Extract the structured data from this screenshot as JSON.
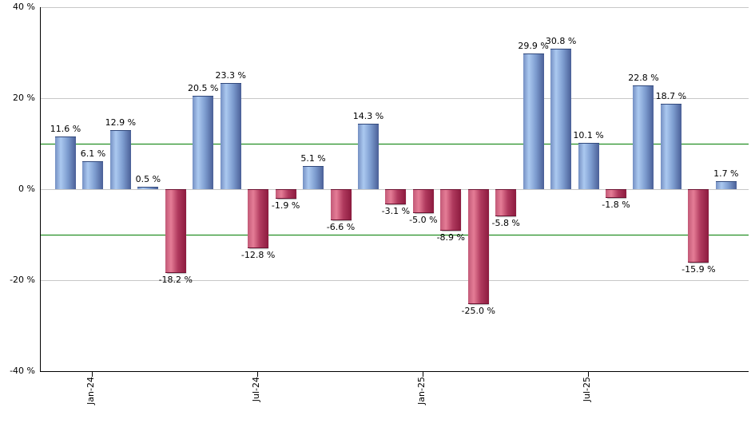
{
  "chart_data": {
    "type": "bar",
    "title": "",
    "xlabel": "",
    "ylabel": "",
    "ylim": [
      -40,
      40
    ],
    "grid": true,
    "legend": false,
    "bars": [
      {
        "value": 11.6,
        "label": "11.6 %"
      },
      {
        "value": 6.1,
        "label": "6.1 %"
      },
      {
        "value": 12.9,
        "label": "12.9 %"
      },
      {
        "value": 0.5,
        "label": "0.5 %"
      },
      {
        "value": -18.2,
        "label": "-18.2 %"
      },
      {
        "value": 20.5,
        "label": "20.5 %"
      },
      {
        "value": 23.3,
        "label": "23.3 %"
      },
      {
        "value": -12.8,
        "label": "-12.8 %"
      },
      {
        "value": -1.9,
        "label": "-1.9 %"
      },
      {
        "value": 5.1,
        "label": "5.1 %"
      },
      {
        "value": -6.6,
        "label": "-6.6 %"
      },
      {
        "value": 14.3,
        "label": "14.3 %"
      },
      {
        "value": -3.1,
        "label": "-3.1 %"
      },
      {
        "value": -5.0,
        "label": "-5.0 %"
      },
      {
        "value": -8.9,
        "label": "-8.9 %"
      },
      {
        "value": -25.0,
        "label": "-25.0 %"
      },
      {
        "value": -5.8,
        "label": "-5.8 %"
      },
      {
        "value": 29.9,
        "label": "29.9 %"
      },
      {
        "value": 30.8,
        "label": "30.8 %"
      },
      {
        "value": 10.1,
        "label": "10.1 %"
      },
      {
        "value": -1.8,
        "label": "-1.8 %"
      },
      {
        "value": 22.8,
        "label": "22.8 %"
      },
      {
        "value": 18.7,
        "label": "18.7 %"
      },
      {
        "value": -15.9,
        "label": "-15.9 %"
      },
      {
        "value": 1.7,
        "label": "1.7 %"
      }
    ],
    "x_ticks": [
      {
        "bar_index": 1,
        "label": "Jan-24"
      },
      {
        "bar_index": 7,
        "label": "Jul-24"
      },
      {
        "bar_index": 13,
        "label": "Jan-25"
      },
      {
        "bar_index": 19,
        "label": "Jul-25"
      }
    ],
    "y_ticks": [
      {
        "value": 40,
        "label": "40 %"
      },
      {
        "value": 20,
        "label": "20 %"
      },
      {
        "value": 0,
        "label": "0 %"
      },
      {
        "value": -20,
        "label": "-20 %"
      },
      {
        "value": -40,
        "label": "-40 %"
      }
    ],
    "gridline_values": [
      40,
      20,
      0,
      -20
    ],
    "reference_lines": [
      {
        "value": 10
      },
      {
        "value": -10
      }
    ],
    "colors": {
      "positive_bar_gradient": [
        "#7590c3",
        "#abc9f0",
        "#7e9dd0",
        "#4a5f97"
      ],
      "negative_bar_gradient": [
        "#c25977",
        "#e57d96",
        "#b03a5e",
        "#8c1a3e"
      ],
      "reference_line": "#007c00",
      "gridline": "#c8c8c8",
      "axis": "#000000",
      "label_text": "#000000",
      "background": "#ffffff"
    }
  }
}
